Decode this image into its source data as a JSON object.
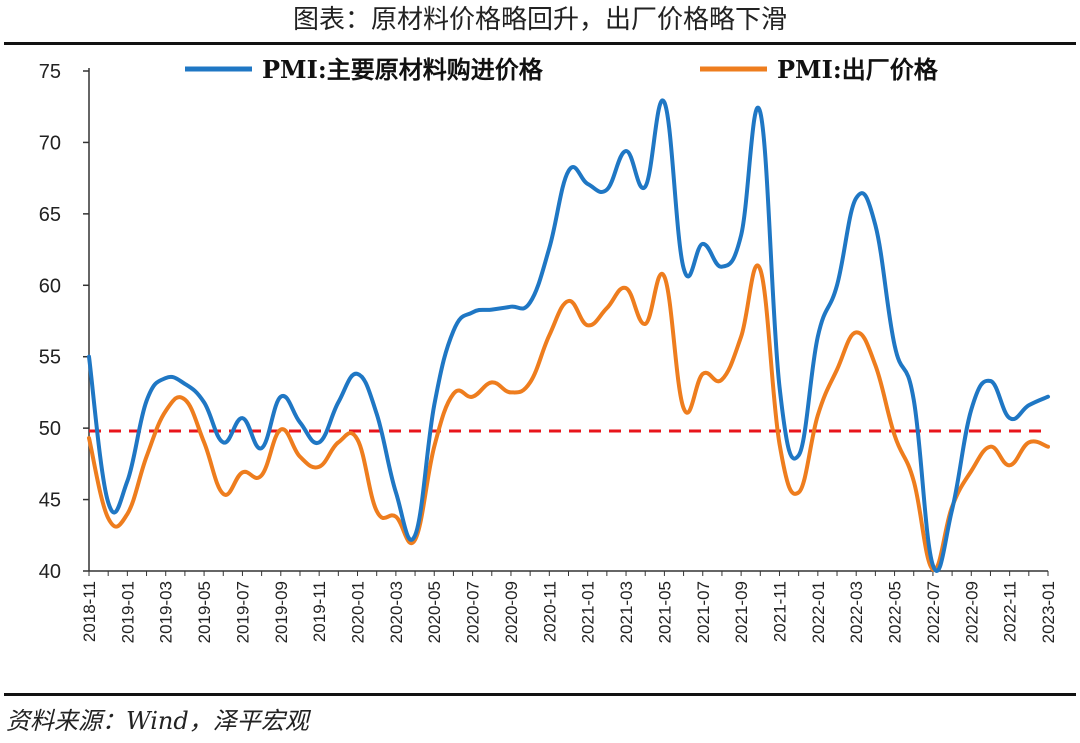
{
  "page": {
    "title": "图表：原材料价格略回升，出厂价格略下滑",
    "source": "资料来源：Wind，泽平宏观"
  },
  "colors": {
    "series1": "#1f77c4",
    "series2": "#ee7d1e",
    "reference": "#e8141b"
  },
  "chart_data": {
    "type": "line",
    "x": [
      "2018-11",
      "2018-12",
      "2019-01",
      "2019-02",
      "2019-03",
      "2019-04",
      "2019-05",
      "2019-06",
      "2019-07",
      "2019-08",
      "2019-09",
      "2019-10",
      "2019-11",
      "2019-12",
      "2020-01",
      "2020-02",
      "2020-03",
      "2020-04",
      "2020-05",
      "2020-06",
      "2020-07",
      "2020-08",
      "2020-09",
      "2020-10",
      "2020-11",
      "2020-12",
      "2021-01",
      "2021-02",
      "2021-03",
      "2021-04",
      "2021-05",
      "2021-06",
      "2021-07",
      "2021-08",
      "2021-09",
      "2021-10",
      "2021-11",
      "2021-12",
      "2022-01",
      "2022-02",
      "2022-03",
      "2022-04",
      "2022-05",
      "2022-06",
      "2022-07",
      "2022-08",
      "2022-09",
      "2022-10",
      "2022-11",
      "2022-12",
      "2023-01"
    ],
    "x_tick_labels": [
      "2018-11",
      "2019-01",
      "2019-03",
      "2019-05",
      "2019-07",
      "2019-09",
      "2019-11",
      "2020-01",
      "2020-03",
      "2020-05",
      "2020-07",
      "2020-09",
      "2020-11",
      "2021-01",
      "2021-03",
      "2021-05",
      "2021-07",
      "2021-09",
      "2021-11",
      "2022-01",
      "2022-03",
      "2022-05",
      "2022-07",
      "2022-09",
      "2022-11",
      "2023-01"
    ],
    "series": [
      {
        "name": "PMI:主要原材料购进价格",
        "values": [
          55.0,
          44.8,
          46.3,
          51.9,
          53.5,
          53.1,
          51.8,
          49.0,
          50.7,
          48.6,
          52.2,
          50.4,
          49.0,
          51.8,
          53.8,
          51.0,
          45.5,
          42.5,
          51.6,
          56.8,
          58.1,
          58.3,
          58.5,
          58.8,
          62.6,
          68.0,
          67.1,
          66.7,
          69.4,
          66.9,
          72.8,
          61.2,
          62.9,
          61.3,
          63.5,
          72.1,
          52.9,
          48.1,
          56.4,
          60.0,
          66.1,
          64.2,
          55.8,
          52.0,
          40.4,
          44.3,
          51.3,
          53.3,
          50.7,
          51.6,
          52.2
        ]
      },
      {
        "name": "PMI:出厂价格",
        "values": [
          49.3,
          43.7,
          44.0,
          48.0,
          51.2,
          52.0,
          49.0,
          45.4,
          46.9,
          46.7,
          49.9,
          48.0,
          47.3,
          49.0,
          49.2,
          44.2,
          43.8,
          42.2,
          48.7,
          52.4,
          52.2,
          53.2,
          52.5,
          53.2,
          56.5,
          58.9,
          57.2,
          58.4,
          59.8,
          57.3,
          60.6,
          51.4,
          53.8,
          53.4,
          56.4,
          61.1,
          48.9,
          45.5,
          50.9,
          54.1,
          56.7,
          54.4,
          49.5,
          46.3,
          40.1,
          44.5,
          47.0,
          48.7,
          47.4,
          49.0,
          48.7
        ]
      }
    ],
    "reference_line": 49.8,
    "ylim": [
      40,
      75
    ],
    "yticks": [
      40,
      45,
      50,
      55,
      60,
      65,
      70,
      75
    ],
    "legend_position": "top"
  }
}
